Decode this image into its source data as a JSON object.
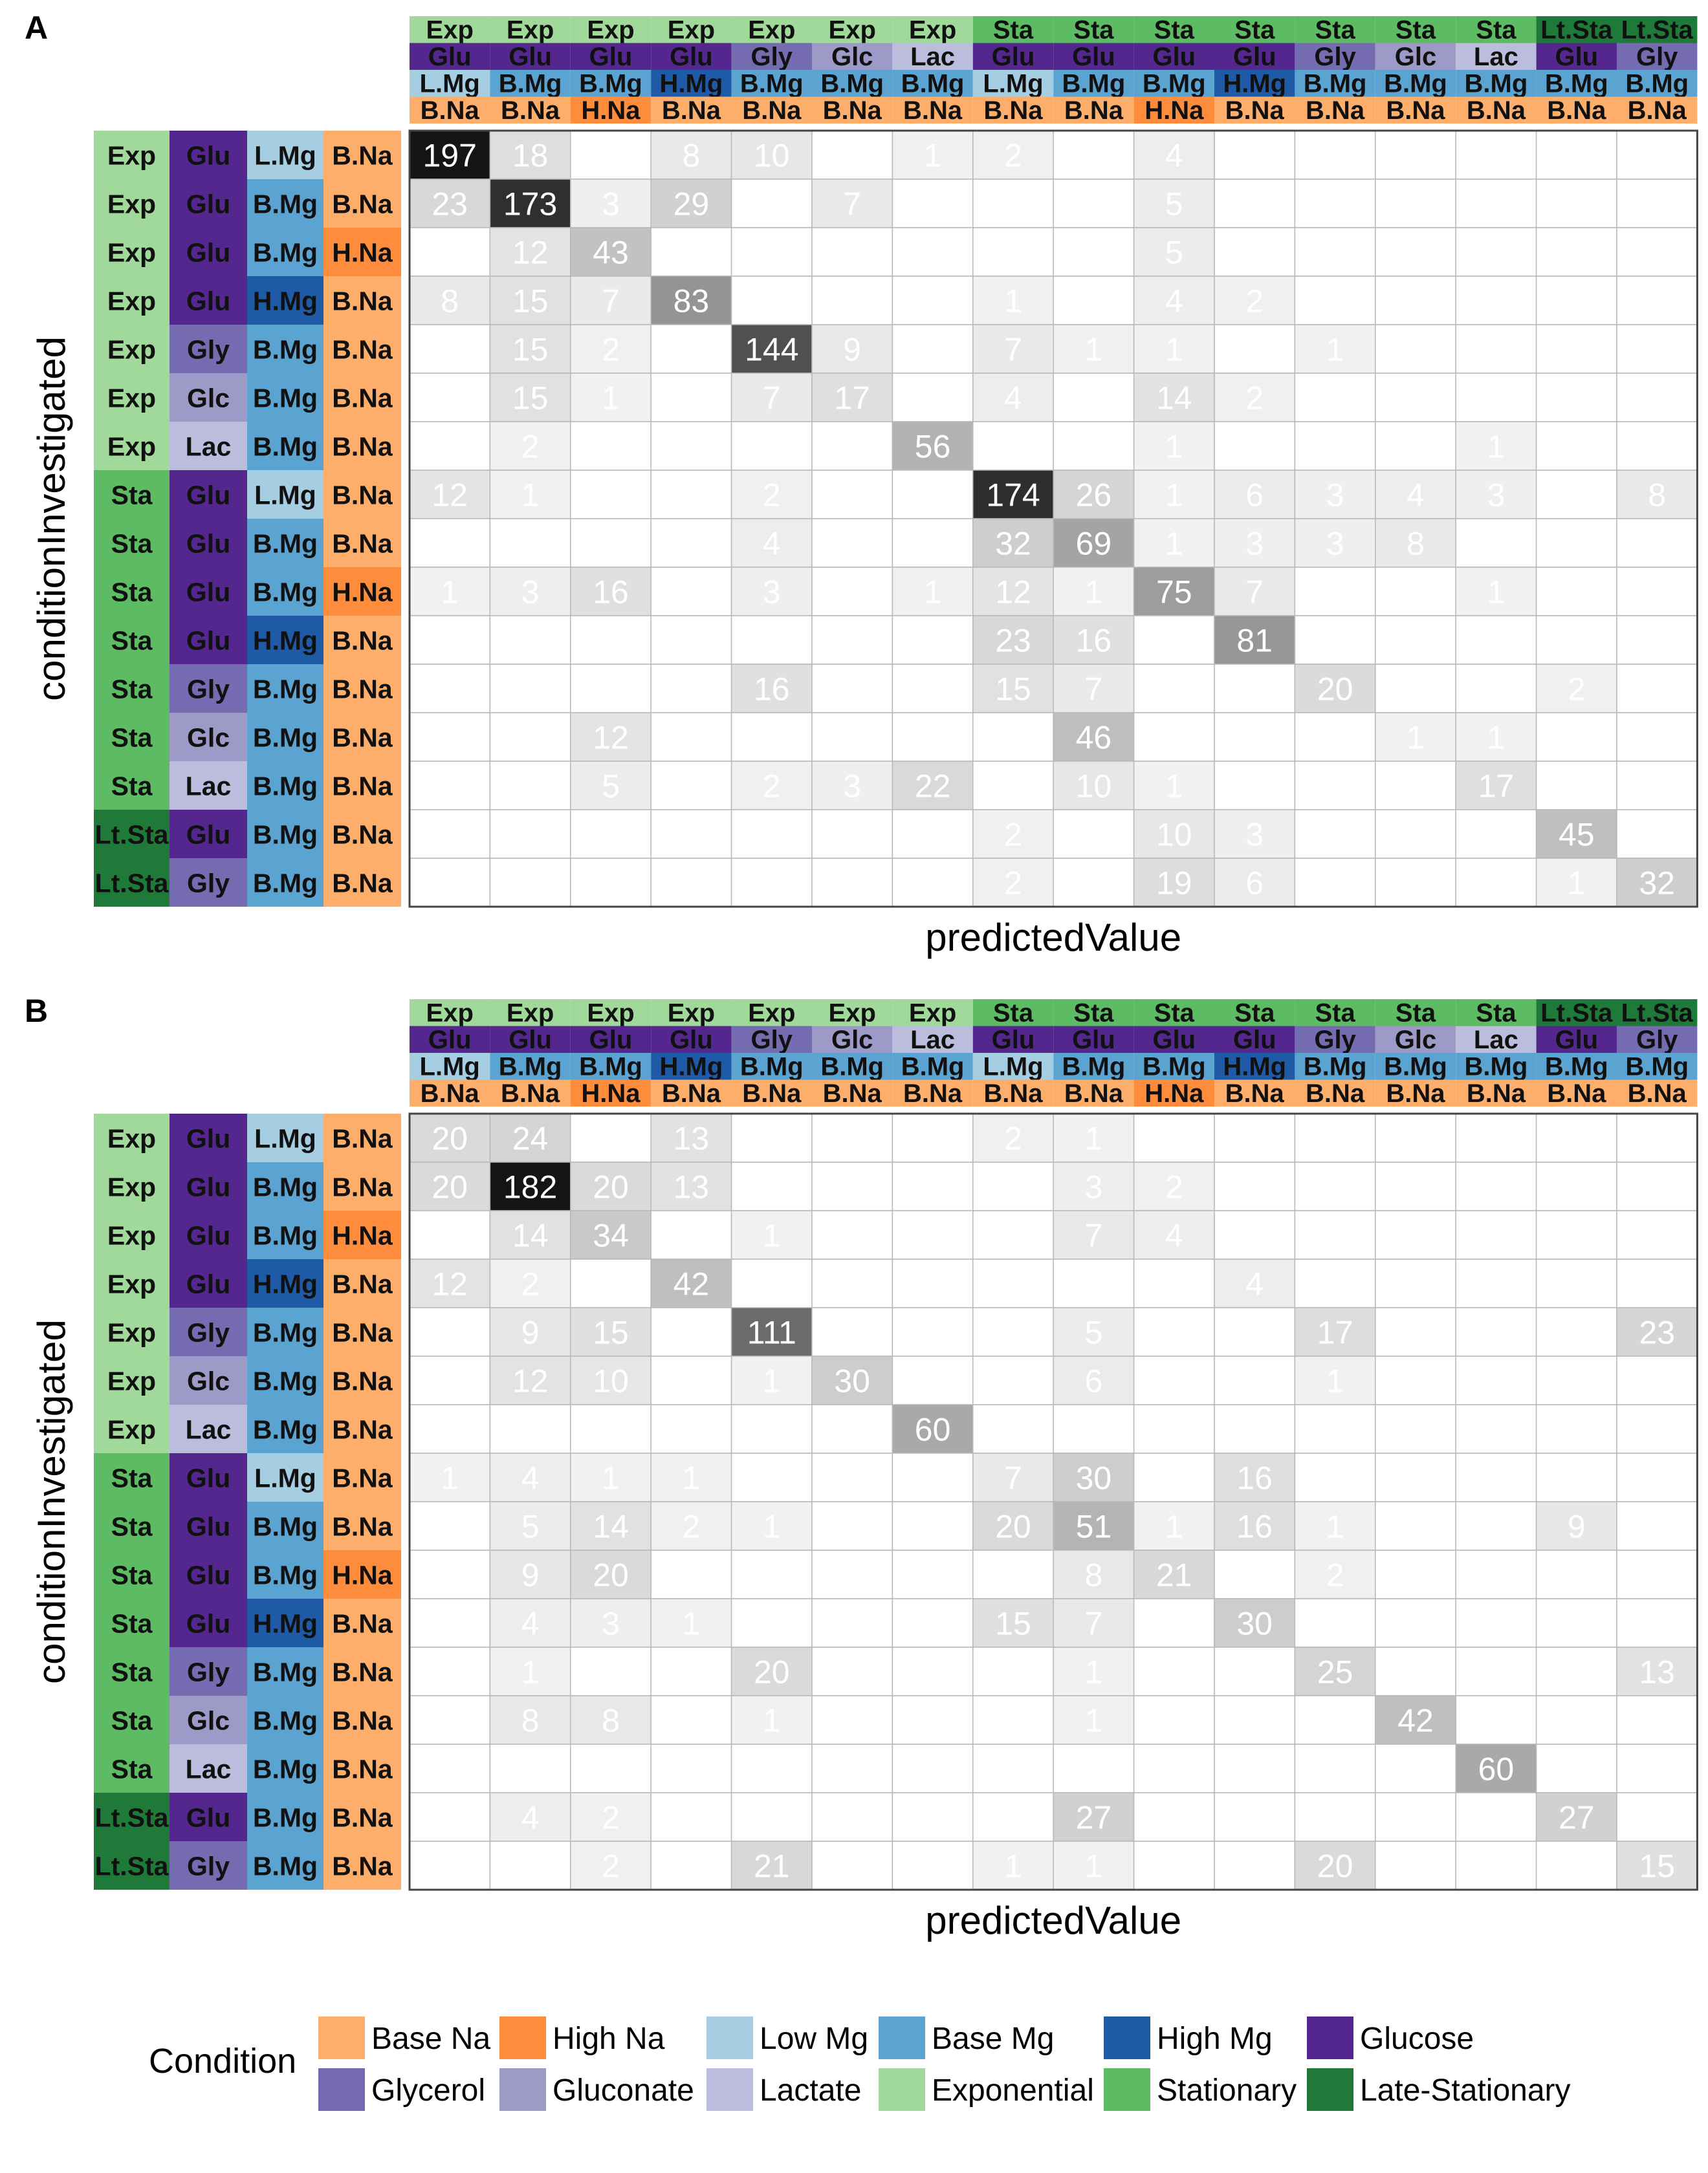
{
  "colors": {
    "Base Na": "#FDAE6B",
    "High Na": "#FD8D3C",
    "Low Mg": "#A6CEE3",
    "Base Mg": "#5BA3D0",
    "High Mg": "#1F5AA6",
    "Glucose": "#54278F",
    "Glycerol": "#756BB1",
    "Gluconate": "#9E9AC8",
    "Lactate": "#BCBDDC",
    "Exponential": "#A1D99B",
    "Stationary": "#5DBB63",
    "Late-Stationary": "#1F7A3A"
  },
  "code_map": {
    "Exp": "Exponential",
    "Sta": "Stationary",
    "Lt.Sta": "Late-Stationary",
    "Glu": "Glucose",
    "Gly": "Glycerol",
    "Glc": "Gluconate",
    "Lac": "Lactate",
    "L.Mg": "Low Mg",
    "B.Mg": "Base Mg",
    "H.Mg": "High Mg",
    "B.Na": "Base Na",
    "H.Na": "High Na"
  },
  "conditions": [
    [
      "Exp",
      "Glu",
      "L.Mg",
      "B.Na"
    ],
    [
      "Exp",
      "Glu",
      "B.Mg",
      "B.Na"
    ],
    [
      "Exp",
      "Glu",
      "B.Mg",
      "H.Na"
    ],
    [
      "Exp",
      "Glu",
      "H.Mg",
      "B.Na"
    ],
    [
      "Exp",
      "Gly",
      "B.Mg",
      "B.Na"
    ],
    [
      "Exp",
      "Glc",
      "B.Mg",
      "B.Na"
    ],
    [
      "Exp",
      "Lac",
      "B.Mg",
      "B.Na"
    ],
    [
      "Sta",
      "Glu",
      "L.Mg",
      "B.Na"
    ],
    [
      "Sta",
      "Glu",
      "B.Mg",
      "B.Na"
    ],
    [
      "Sta",
      "Glu",
      "B.Mg",
      "H.Na"
    ],
    [
      "Sta",
      "Glu",
      "H.Mg",
      "B.Na"
    ],
    [
      "Sta",
      "Gly",
      "B.Mg",
      "B.Na"
    ],
    [
      "Sta",
      "Glc",
      "B.Mg",
      "B.Na"
    ],
    [
      "Sta",
      "Lac",
      "B.Mg",
      "B.Na"
    ],
    [
      "Lt.Sta",
      "Glu",
      "B.Mg",
      "B.Na"
    ],
    [
      "Lt.Sta",
      "Gly",
      "B.Mg",
      "B.Na"
    ]
  ],
  "chart_data": [
    {
      "panel": "A",
      "type": "heatmap",
      "xlabel": "predictedValue",
      "ylabel": "conditionInvestigated",
      "rows_are": "conditionInvestigated",
      "cols_are": "predictedValue",
      "matrix": [
        [
          197,
          18,
          0,
          8,
          10,
          0,
          1,
          2,
          0,
          4,
          0,
          0,
          0,
          0,
          0,
          0
        ],
        [
          23,
          173,
          3,
          29,
          0,
          7,
          0,
          0,
          0,
          5,
          0,
          0,
          0,
          0,
          0,
          0
        ],
        [
          0,
          12,
          43,
          0,
          0,
          0,
          0,
          0,
          0,
          5,
          0,
          0,
          0,
          0,
          0,
          0
        ],
        [
          8,
          15,
          7,
          83,
          0,
          0,
          0,
          1,
          0,
          4,
          2,
          0,
          0,
          0,
          0,
          0
        ],
        [
          0,
          15,
          2,
          0,
          144,
          9,
          0,
          7,
          1,
          1,
          0,
          1,
          0,
          0,
          0,
          0
        ],
        [
          0,
          15,
          1,
          0,
          7,
          17,
          0,
          4,
          0,
          14,
          2,
          0,
          0,
          0,
          0,
          0
        ],
        [
          0,
          2,
          0,
          0,
          0,
          0,
          56,
          0,
          0,
          1,
          0,
          0,
          0,
          1,
          0,
          0
        ],
        [
          12,
          1,
          0,
          0,
          2,
          0,
          0,
          174,
          26,
          1,
          6,
          3,
          4,
          3,
          0,
          8
        ],
        [
          0,
          0,
          0,
          0,
          4,
          0,
          0,
          32,
          69,
          1,
          3,
          3,
          8,
          0,
          0,
          0
        ],
        [
          1,
          3,
          16,
          0,
          3,
          0,
          1,
          12,
          1,
          75,
          7,
          0,
          0,
          1,
          0,
          0
        ],
        [
          0,
          0,
          0,
          0,
          0,
          0,
          0,
          23,
          16,
          0,
          81,
          0,
          0,
          0,
          0,
          0
        ],
        [
          0,
          0,
          0,
          0,
          16,
          0,
          0,
          15,
          7,
          0,
          0,
          20,
          0,
          0,
          2,
          0
        ],
        [
          0,
          0,
          12,
          0,
          0,
          0,
          0,
          0,
          46,
          0,
          0,
          0,
          1,
          1,
          0,
          0
        ],
        [
          0,
          0,
          5,
          0,
          2,
          3,
          22,
          0,
          10,
          1,
          0,
          0,
          0,
          17,
          0,
          0
        ],
        [
          0,
          0,
          0,
          0,
          0,
          0,
          0,
          2,
          0,
          10,
          3,
          0,
          0,
          0,
          45,
          0
        ],
        [
          0,
          0,
          0,
          0,
          0,
          0,
          0,
          2,
          0,
          19,
          6,
          0,
          0,
          0,
          1,
          32
        ]
      ]
    },
    {
      "panel": "B",
      "type": "heatmap",
      "xlabel": "predictedValue",
      "ylabel": "conditionInvestigated",
      "rows_are": "conditionInvestigated",
      "cols_are": "predictedValue",
      "matrix": [
        [
          20,
          24,
          0,
          13,
          0,
          0,
          0,
          2,
          1,
          0,
          0,
          0,
          0,
          0,
          0,
          0
        ],
        [
          20,
          182,
          20,
          13,
          0,
          0,
          0,
          0,
          3,
          2,
          0,
          0,
          0,
          0,
          0,
          0
        ],
        [
          0,
          14,
          34,
          0,
          1,
          0,
          0,
          0,
          7,
          4,
          0,
          0,
          0,
          0,
          0,
          0
        ],
        [
          12,
          2,
          0,
          42,
          0,
          0,
          0,
          0,
          0,
          0,
          4,
          0,
          0,
          0,
          0,
          0
        ],
        [
          0,
          9,
          15,
          0,
          111,
          0,
          0,
          0,
          5,
          0,
          0,
          17,
          0,
          0,
          0,
          23
        ],
        [
          0,
          12,
          10,
          0,
          1,
          30,
          0,
          0,
          6,
          0,
          0,
          1,
          0,
          0,
          0,
          0
        ],
        [
          0,
          0,
          0,
          0,
          0,
          0,
          60,
          0,
          0,
          0,
          0,
          0,
          0,
          0,
          0,
          0
        ],
        [
          1,
          4,
          1,
          1,
          0,
          0,
          0,
          7,
          30,
          0,
          16,
          0,
          0,
          0,
          0,
          0
        ],
        [
          0,
          5,
          14,
          2,
          1,
          0,
          0,
          20,
          51,
          1,
          16,
          1,
          0,
          0,
          9,
          0
        ],
        [
          0,
          9,
          20,
          0,
          0,
          0,
          0,
          0,
          8,
          21,
          0,
          2,
          0,
          0,
          0,
          0
        ],
        [
          0,
          4,
          3,
          1,
          0,
          0,
          0,
          15,
          7,
          0,
          30,
          0,
          0,
          0,
          0,
          0
        ],
        [
          0,
          1,
          0,
          0,
          20,
          0,
          0,
          0,
          1,
          0,
          0,
          25,
          0,
          0,
          0,
          13
        ],
        [
          0,
          8,
          8,
          0,
          1,
          0,
          0,
          0,
          1,
          0,
          0,
          0,
          42,
          0,
          0,
          0
        ],
        [
          0,
          0,
          0,
          0,
          0,
          0,
          0,
          0,
          0,
          0,
          0,
          0,
          0,
          60,
          0,
          0
        ],
        [
          0,
          4,
          2,
          0,
          0,
          0,
          0,
          0,
          27,
          0,
          0,
          0,
          0,
          0,
          27,
          0
        ],
        [
          0,
          0,
          2,
          0,
          21,
          0,
          0,
          1,
          1,
          0,
          0,
          20,
          0,
          0,
          0,
          15
        ]
      ]
    }
  ],
  "legend": {
    "title": "Condition",
    "items": [
      "Base Na",
      "High Na",
      "Low Mg",
      "Base Mg",
      "High Mg",
      "Glucose",
      "Glycerol",
      "Gluconate",
      "Lactate",
      "Exponential",
      "Stationary",
      "Late-Stationary"
    ]
  }
}
